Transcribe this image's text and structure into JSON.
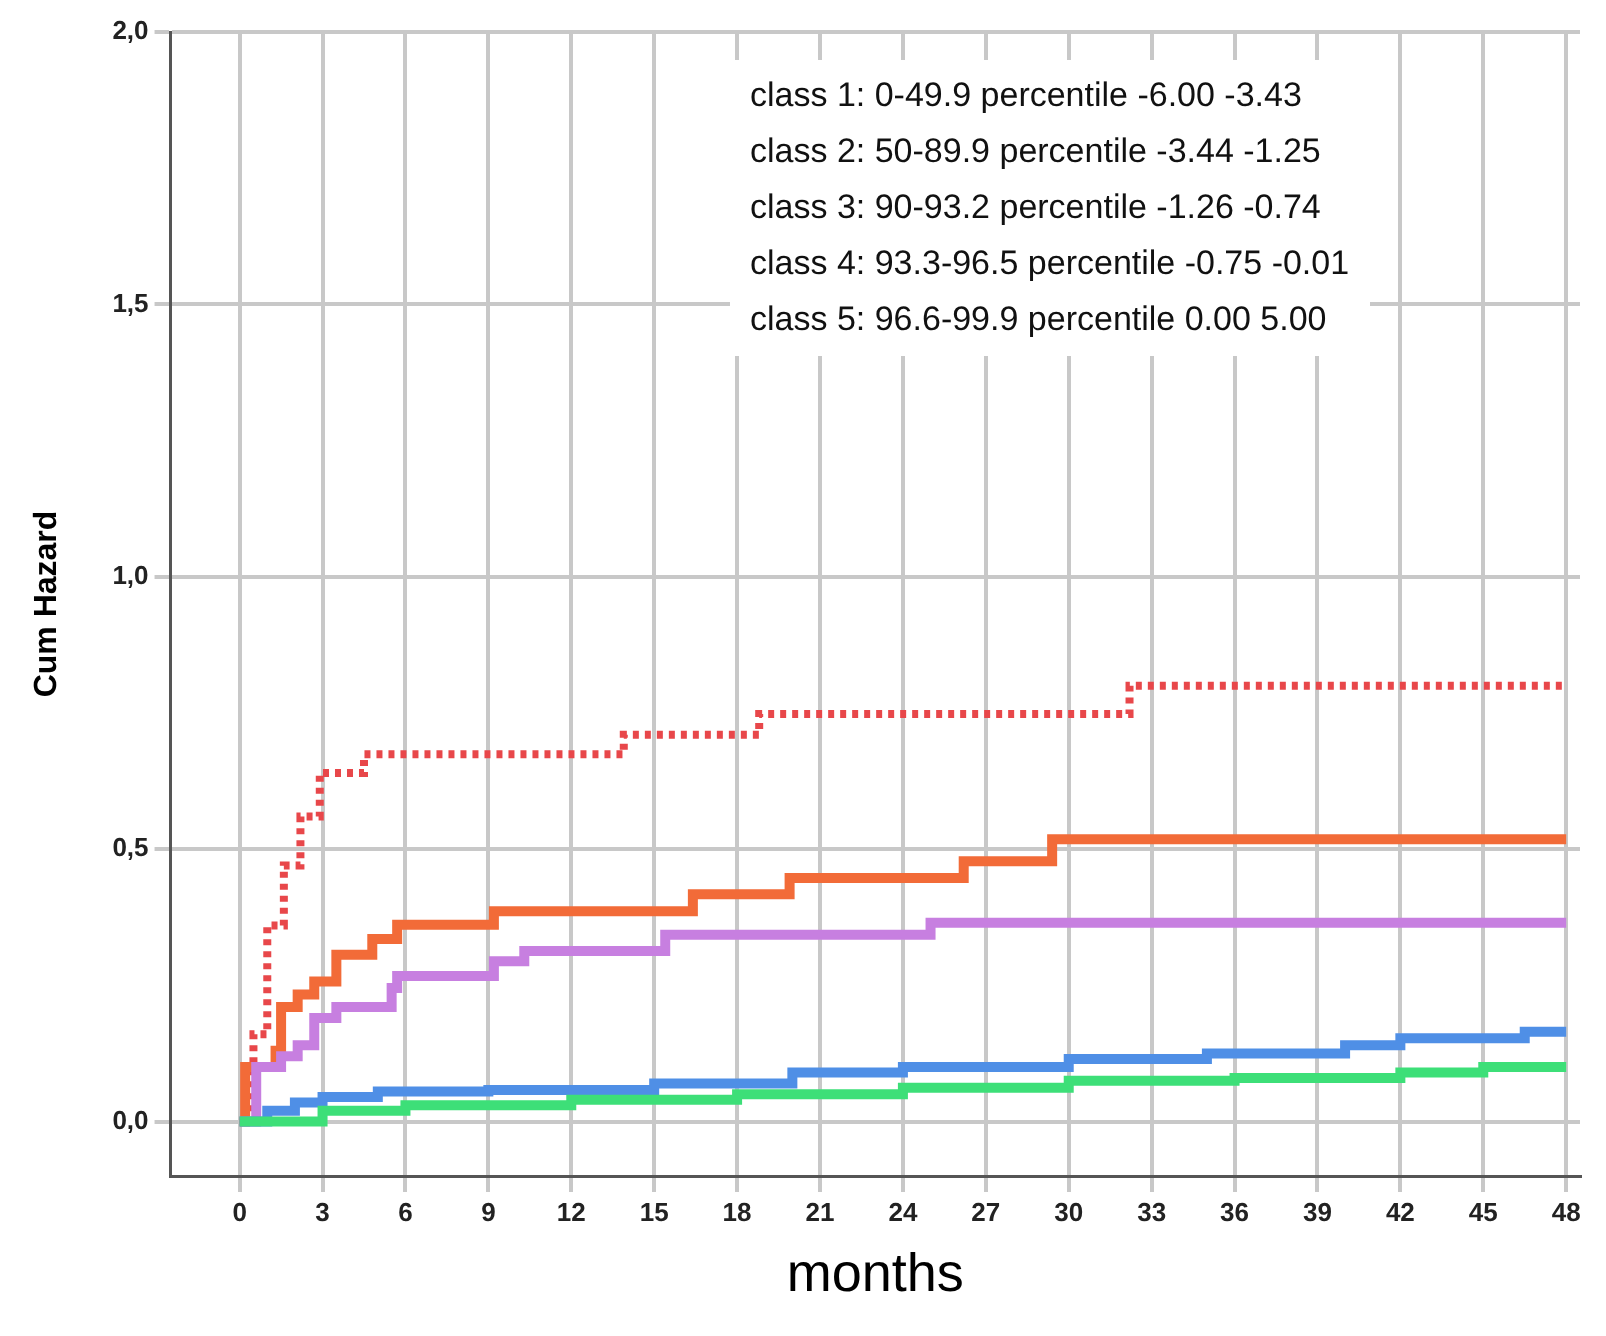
{
  "chart_data": {
    "type": "step",
    "xlabel": "months",
    "ylabel": "Cum Hazard",
    "xlim": [
      -2.5,
      48.5
    ],
    "xticks": [
      0,
      3,
      6,
      9,
      12,
      15,
      18,
      21,
      24,
      27,
      30,
      33,
      36,
      39,
      42,
      45,
      48
    ],
    "ylim": [
      -0.1,
      2.0
    ],
    "yticks": [
      {
        "value": 0,
        "label": "0,0"
      },
      {
        "value": 0.5,
        "label": "0,5"
      },
      {
        "value": 1,
        "label": "1,0"
      },
      {
        "value": 1.5,
        "label": "1,5"
      },
      {
        "value": 2,
        "label": "2,0"
      }
    ],
    "grid": true,
    "line_style": "solid",
    "annotations": [
      "class 1: 0-49.9 percentile -6.00 -3.43",
      "class 2: 50-89.9 percentile -3.44 -1.25",
      "class 3: 90-93.2 percentile -1.26 -0.74",
      "class 4: 93.3-96.5 percentile -0.75 -0.01",
      "class 5: 96.6-99.9 percentile 0.00 5.00"
    ],
    "series": [
      {
        "color": "#3ddf78",
        "x": [
          0,
          3,
          6,
          12,
          18,
          24,
          30,
          36,
          42,
          45,
          48
        ],
        "values": [
          0,
          0.02,
          0.03,
          0.04,
          0.05,
          0.062,
          0.075,
          0.08,
          0.09,
          0.1,
          0.1
        ]
      },
      {
        "color": "#4f8fe6",
        "x": [
          0,
          1,
          2,
          3,
          5,
          9,
          15,
          20,
          24,
          30,
          35,
          40,
          42,
          46.5,
          48
        ],
        "values": [
          0,
          0.02,
          0.035,
          0.045,
          0.055,
          0.058,
          0.07,
          0.09,
          0.1,
          0.115,
          0.125,
          0.14,
          0.153,
          0.165,
          0.165
        ]
      },
      {
        "color": "#c77fe0",
        "x": [
          0,
          0.6,
          1.5,
          2.1,
          2.7,
          3.5,
          5.5,
          5.7,
          9.2,
          10.3,
          15.4,
          25,
          48
        ],
        "values": [
          0,
          0.1,
          0.12,
          0.14,
          0.19,
          0.21,
          0.245,
          0.267,
          0.294,
          0.313,
          0.343,
          0.365,
          0.365
        ]
      },
      {
        "color": "#f26b38",
        "x": [
          0,
          0.2,
          1.3,
          1.5,
          2.1,
          2.7,
          3.5,
          4.8,
          5.7,
          9.2,
          16.4,
          19.9,
          26.2,
          29.4,
          48
        ],
        "values": [
          0,
          0.1,
          0.13,
          0.21,
          0.233,
          0.257,
          0.306,
          0.335,
          0.361,
          0.386,
          0.417,
          0.447,
          0.478,
          0.518,
          0.518
        ]
      },
      {
        "color": "#e8474a",
        "line_style": "dotted",
        "x": [
          0,
          0.5,
          1,
          1.6,
          2.2,
          2.9,
          4.5,
          13.9,
          18.8,
          32.2,
          48
        ],
        "values": [
          0,
          0.16,
          0.36,
          0.47,
          0.56,
          0.64,
          0.674,
          0.71,
          0.748,
          0.8,
          0.8
        ]
      }
    ]
  }
}
